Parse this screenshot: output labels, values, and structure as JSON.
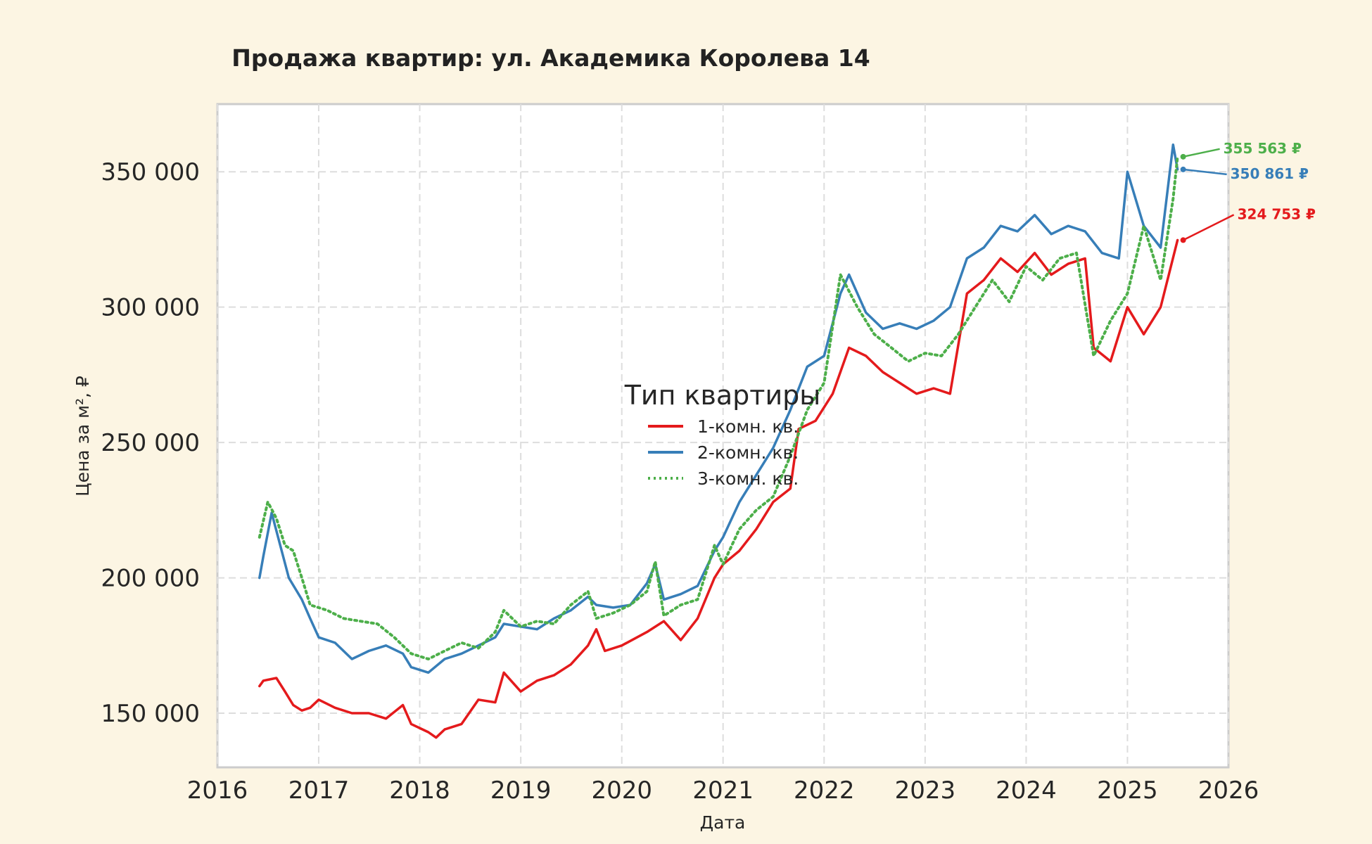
{
  "chart_data": {
    "type": "line",
    "title": "Продажа квартир: ул. Академика Королева 14",
    "xlabel": "Дата",
    "ylabel": "Цена за м², ₽",
    "xlim": [
      "2016-01-01",
      "2026-01-01"
    ],
    "ylim": [
      130000,
      375000
    ],
    "x_ticks": [
      "2016",
      "2017",
      "2018",
      "2019",
      "2020",
      "2021",
      "2022",
      "2023",
      "2024",
      "2025",
      "2026"
    ],
    "y_ticks": [
      150000,
      200000,
      250000,
      300000,
      350000
    ],
    "y_tick_labels": [
      "150 000",
      "200 000",
      "250 000",
      "300 000",
      "350 000"
    ],
    "grid": true,
    "legend": {
      "title": "Тип квартиры",
      "placement": "center"
    },
    "series": [
      {
        "name": "1-комн. кв.",
        "color": "#e41a1c",
        "style": "solid",
        "points": [
          [
            "2016-06-01",
            160000
          ],
          [
            "2016-06-15",
            162000
          ],
          [
            "2016-08-01",
            163000
          ],
          [
            "2016-09-01",
            158000
          ],
          [
            "2016-10-01",
            153000
          ],
          [
            "2016-11-01",
            151000
          ],
          [
            "2016-12-01",
            152000
          ],
          [
            "2017-01-01",
            155000
          ],
          [
            "2017-03-01",
            152000
          ],
          [
            "2017-05-01",
            150000
          ],
          [
            "2017-07-01",
            150000
          ],
          [
            "2017-09-01",
            148000
          ],
          [
            "2017-11-01",
            153000
          ],
          [
            "2017-12-01",
            146000
          ],
          [
            "2018-02-01",
            143000
          ],
          [
            "2018-03-01",
            141000
          ],
          [
            "2018-04-01",
            144000
          ],
          [
            "2018-06-01",
            146000
          ],
          [
            "2018-08-01",
            155000
          ],
          [
            "2018-10-01",
            154000
          ],
          [
            "2018-11-01",
            165000
          ],
          [
            "2019-01-01",
            158000
          ],
          [
            "2019-03-01",
            162000
          ],
          [
            "2019-05-01",
            164000
          ],
          [
            "2019-07-01",
            168000
          ],
          [
            "2019-09-01",
            175000
          ],
          [
            "2019-10-01",
            181000
          ],
          [
            "2019-11-01",
            173000
          ],
          [
            "2020-01-01",
            175000
          ],
          [
            "2020-04-01",
            180000
          ],
          [
            "2020-06-01",
            184000
          ],
          [
            "2020-08-01",
            177000
          ],
          [
            "2020-10-01",
            185000
          ],
          [
            "2020-12-01",
            200000
          ],
          [
            "2021-01-01",
            205000
          ],
          [
            "2021-03-01",
            210000
          ],
          [
            "2021-05-01",
            218000
          ],
          [
            "2021-07-01",
            228000
          ],
          [
            "2021-09-01",
            233000
          ],
          [
            "2021-10-01",
            255000
          ],
          [
            "2021-12-01",
            258000
          ],
          [
            "2022-02-01",
            268000
          ],
          [
            "2022-04-01",
            285000
          ],
          [
            "2022-06-01",
            282000
          ],
          [
            "2022-08-01",
            276000
          ],
          [
            "2022-10-01",
            272000
          ],
          [
            "2022-12-01",
            268000
          ],
          [
            "2023-02-01",
            270000
          ],
          [
            "2023-04-01",
            268000
          ],
          [
            "2023-06-01",
            305000
          ],
          [
            "2023-08-01",
            310000
          ],
          [
            "2023-10-01",
            318000
          ],
          [
            "2023-12-01",
            313000
          ],
          [
            "2024-02-01",
            320000
          ],
          [
            "2024-04-01",
            312000
          ],
          [
            "2024-06-01",
            316000
          ],
          [
            "2024-08-01",
            318000
          ],
          [
            "2024-09-01",
            285000
          ],
          [
            "2024-11-01",
            280000
          ],
          [
            "2025-01-01",
            300000
          ],
          [
            "2025-03-01",
            290000
          ],
          [
            "2025-05-01",
            300000
          ],
          [
            "2025-07-01",
            324753
          ]
        ]
      },
      {
        "name": "2-комн. кв.",
        "color": "#377eb8",
        "style": "solid",
        "points": [
          [
            "2016-06-01",
            200000
          ],
          [
            "2016-06-15",
            208000
          ],
          [
            "2016-07-15",
            224000
          ],
          [
            "2016-08-15",
            212000
          ],
          [
            "2016-09-15",
            200000
          ],
          [
            "2016-11-01",
            192000
          ],
          [
            "2016-12-01",
            185000
          ],
          [
            "2017-01-01",
            178000
          ],
          [
            "2017-03-01",
            176000
          ],
          [
            "2017-05-01",
            170000
          ],
          [
            "2017-07-01",
            173000
          ],
          [
            "2017-09-01",
            175000
          ],
          [
            "2017-11-01",
            172000
          ],
          [
            "2017-12-01",
            167000
          ],
          [
            "2018-02-01",
            165000
          ],
          [
            "2018-04-01",
            170000
          ],
          [
            "2018-06-01",
            172000
          ],
          [
            "2018-08-01",
            175000
          ],
          [
            "2018-10-01",
            178000
          ],
          [
            "2018-11-01",
            183000
          ],
          [
            "2019-01-01",
            182000
          ],
          [
            "2019-03-01",
            181000
          ],
          [
            "2019-05-01",
            185000
          ],
          [
            "2019-07-01",
            188000
          ],
          [
            "2019-09-01",
            193000
          ],
          [
            "2019-10-01",
            190000
          ],
          [
            "2019-12-01",
            189000
          ],
          [
            "2020-02-01",
            190000
          ],
          [
            "2020-04-01",
            198000
          ],
          [
            "2020-05-01",
            205000
          ],
          [
            "2020-06-01",
            192000
          ],
          [
            "2020-08-01",
            194000
          ],
          [
            "2020-10-01",
            197000
          ],
          [
            "2020-12-01",
            210000
          ],
          [
            "2021-01-01",
            215000
          ],
          [
            "2021-03-01",
            228000
          ],
          [
            "2021-05-01",
            238000
          ],
          [
            "2021-07-01",
            248000
          ],
          [
            "2021-09-01",
            262000
          ],
          [
            "2021-11-01",
            278000
          ],
          [
            "2022-01-01",
            282000
          ],
          [
            "2022-03-01",
            305000
          ],
          [
            "2022-04-01",
            312000
          ],
          [
            "2022-06-01",
            298000
          ],
          [
            "2022-08-01",
            292000
          ],
          [
            "2022-10-01",
            294000
          ],
          [
            "2022-12-01",
            292000
          ],
          [
            "2023-02-01",
            295000
          ],
          [
            "2023-04-01",
            300000
          ],
          [
            "2023-06-01",
            318000
          ],
          [
            "2023-08-01",
            322000
          ],
          [
            "2023-10-01",
            330000
          ],
          [
            "2023-12-01",
            328000
          ],
          [
            "2024-02-01",
            334000
          ],
          [
            "2024-04-01",
            327000
          ],
          [
            "2024-06-01",
            330000
          ],
          [
            "2024-08-01",
            328000
          ],
          [
            "2024-10-01",
            320000
          ],
          [
            "2024-12-01",
            318000
          ],
          [
            "2025-01-01",
            350000
          ],
          [
            "2025-03-01",
            330000
          ],
          [
            "2025-05-01",
            322000
          ],
          [
            "2025-06-15",
            360000
          ],
          [
            "2025-07-01",
            350861
          ]
        ]
      },
      {
        "name": "3-комн. кв.",
        "color": "#4daf4a",
        "style": "dotted",
        "points": [
          [
            "2016-06-01",
            215000
          ],
          [
            "2016-07-01",
            228000
          ],
          [
            "2016-08-01",
            222000
          ],
          [
            "2016-09-01",
            212000
          ],
          [
            "2016-10-01",
            210000
          ],
          [
            "2016-11-01",
            200000
          ],
          [
            "2016-12-01",
            190000
          ],
          [
            "2017-02-01",
            188000
          ],
          [
            "2017-04-01",
            185000
          ],
          [
            "2017-06-01",
            184000
          ],
          [
            "2017-08-01",
            183000
          ],
          [
            "2017-10-01",
            178000
          ],
          [
            "2017-12-01",
            172000
          ],
          [
            "2018-02-01",
            170000
          ],
          [
            "2018-04-01",
            173000
          ],
          [
            "2018-06-01",
            176000
          ],
          [
            "2018-08-01",
            174000
          ],
          [
            "2018-10-01",
            180000
          ],
          [
            "2018-11-01",
            188000
          ],
          [
            "2019-01-01",
            182000
          ],
          [
            "2019-03-01",
            184000
          ],
          [
            "2019-05-01",
            183000
          ],
          [
            "2019-07-01",
            190000
          ],
          [
            "2019-09-01",
            195000
          ],
          [
            "2019-10-01",
            185000
          ],
          [
            "2019-12-01",
            187000
          ],
          [
            "2020-02-01",
            190000
          ],
          [
            "2020-04-01",
            195000
          ],
          [
            "2020-05-01",
            206000
          ],
          [
            "2020-06-01",
            186000
          ],
          [
            "2020-08-01",
            190000
          ],
          [
            "2020-10-01",
            192000
          ],
          [
            "2020-12-01",
            212000
          ],
          [
            "2021-01-01",
            205000
          ],
          [
            "2021-03-01",
            218000
          ],
          [
            "2021-05-01",
            225000
          ],
          [
            "2021-07-01",
            230000
          ],
          [
            "2021-09-01",
            245000
          ],
          [
            "2021-11-01",
            262000
          ],
          [
            "2022-01-01",
            272000
          ],
          [
            "2022-03-01",
            312000
          ],
          [
            "2022-05-01",
            300000
          ],
          [
            "2022-07-01",
            290000
          ],
          [
            "2022-09-01",
            285000
          ],
          [
            "2022-11-01",
            280000
          ],
          [
            "2023-01-01",
            283000
          ],
          [
            "2023-03-01",
            282000
          ],
          [
            "2023-05-01",
            290000
          ],
          [
            "2023-07-01",
            300000
          ],
          [
            "2023-09-01",
            310000
          ],
          [
            "2023-11-01",
            302000
          ],
          [
            "2024-01-01",
            315000
          ],
          [
            "2024-03-01",
            310000
          ],
          [
            "2024-05-01",
            318000
          ],
          [
            "2024-07-01",
            320000
          ],
          [
            "2024-09-01",
            282000
          ],
          [
            "2024-11-01",
            295000
          ],
          [
            "2025-01-01",
            305000
          ],
          [
            "2025-03-01",
            330000
          ],
          [
            "2025-05-01",
            310000
          ],
          [
            "2025-06-15",
            340000
          ],
          [
            "2025-07-01",
            355563
          ]
        ]
      }
    ],
    "annotations": [
      {
        "series": 2,
        "text": "355 563 ₽",
        "color": "#4daf4a"
      },
      {
        "series": 1,
        "text": "350 861 ₽",
        "color": "#377eb8"
      },
      {
        "series": 0,
        "text": "324 753 ₽",
        "color": "#e41a1c"
      }
    ]
  }
}
